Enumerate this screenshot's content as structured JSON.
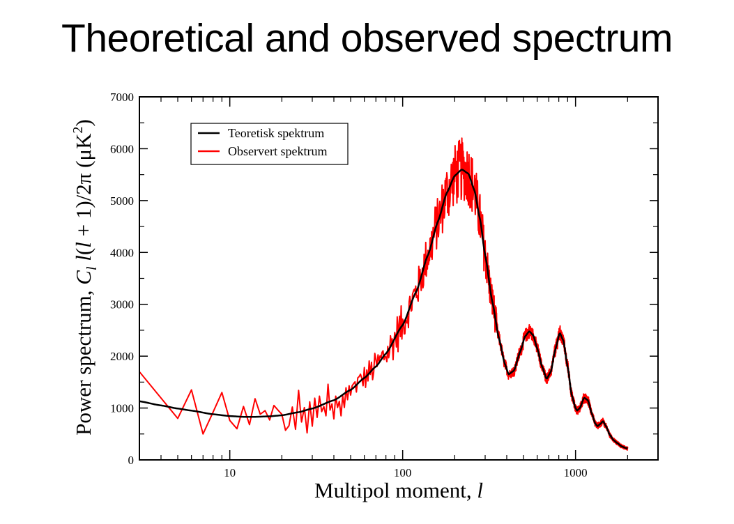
{
  "slide": {
    "title": "Theoretical and observed spectrum"
  },
  "chart_data": {
    "type": "line",
    "title": "Theoretical and observed spectrum",
    "xlabel_main": "Multipol moment, ",
    "xlabel_var": "l",
    "ylabel_parts": {
      "prefix": "Power spectrum, ",
      "C": "C",
      "sub_l": "l",
      "space": " ",
      "l": "l",
      "mid": "(",
      "l2": "l",
      "rest": " + 1)/2π (μK",
      "sup": "2",
      "close": ")"
    },
    "xscale": "log",
    "xlim": [
      3,
      3000
    ],
    "ylim": [
      0,
      7000
    ],
    "x_ticks": [
      10,
      100,
      1000
    ],
    "x_tick_labels": [
      "10",
      "100",
      "1000"
    ],
    "y_ticks": [
      0,
      1000,
      2000,
      3000,
      4000,
      5000,
      6000,
      7000
    ],
    "y_tick_labels": [
      "0",
      "1000",
      "2000",
      "3000",
      "4000",
      "5000",
      "6000",
      "7000"
    ],
    "legend_position": "top-left",
    "grid": false,
    "series": [
      {
        "name": "Teoretisk spektrum",
        "color": "#000000",
        "x": [
          3,
          4,
          5,
          6,
          8,
          10,
          12,
          14,
          17,
          20,
          25,
          30,
          40,
          50,
          60,
          70,
          80,
          100,
          120,
          140,
          160,
          180,
          200,
          220,
          240,
          260,
          280,
          300,
          330,
          360,
          390,
          410,
          440,
          480,
          510,
          540,
          570,
          600,
          640,
          680,
          720,
          760,
          810,
          850,
          900,
          950,
          1000,
          1020,
          1060,
          1120,
          1180,
          1240,
          1300,
          1340,
          1400,
          1440,
          1500,
          1580,
          1660,
          1750,
          1850,
          1950,
          2000
        ],
        "y": [
          1130,
          1050,
          990,
          950,
          880,
          845,
          830,
          830,
          840,
          860,
          920,
          990,
          1150,
          1350,
          1580,
          1800,
          2050,
          2600,
          3250,
          3950,
          4600,
          5150,
          5480,
          5600,
          5520,
          5200,
          4650,
          3950,
          3050,
          2350,
          1850,
          1650,
          1720,
          2100,
          2380,
          2480,
          2400,
          2150,
          1800,
          1560,
          1700,
          2100,
          2450,
          2300,
          1800,
          1250,
          1000,
          950,
          1000,
          1200,
          1150,
          900,
          700,
          650,
          700,
          750,
          650,
          480,
          380,
          320,
          260,
          230,
          220
        ]
      },
      {
        "name": "Observert spektrum",
        "color": "#ff0000",
        "x": [
          3,
          5,
          6,
          7,
          8,
          9,
          10,
          11,
          12,
          13,
          14,
          15,
          16,
          17,
          18,
          19,
          20,
          21,
          22,
          23,
          24,
          25,
          26,
          27,
          28,
          29,
          30,
          31,
          32,
          33,
          34,
          35,
          36,
          37,
          38,
          39,
          40,
          41,
          42,
          43,
          44,
          45,
          46,
          47,
          48,
          49,
          50
        ],
        "y": [
          1700,
          800,
          1350,
          500,
          920,
          1300,
          760,
          600,
          1030,
          680,
          1180,
          880,
          950,
          770,
          1050,
          960,
          880,
          570,
          660,
          1020,
          590,
          1340,
          730,
          1010,
          520,
          1120,
          650,
          1190,
          820,
          1230,
          930,
          1030,
          850,
          1460,
          960,
          1080,
          790,
          1230,
          1010,
          1130,
          850,
          1240,
          1010,
          1390,
          1160,
          1430,
          1250
        ],
        "noise_above_50": "observed scatter around theory"
      }
    ]
  }
}
